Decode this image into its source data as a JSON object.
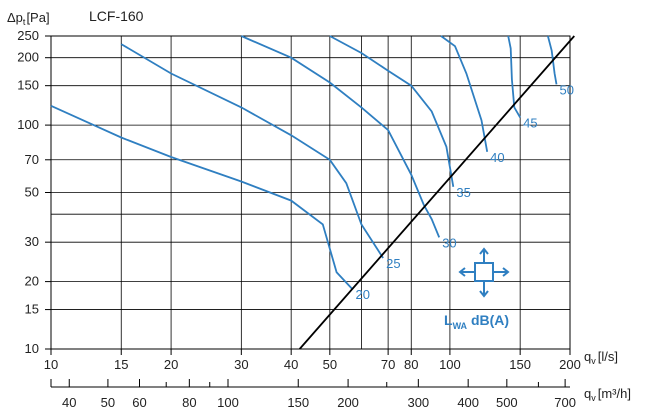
{
  "chart_data": {
    "type": "line",
    "title": "LCF-160",
    "y_axis": {
      "label_main": "Δp",
      "label_sub": "t",
      "label_unit": "[Pa]",
      "scale": "log",
      "range": [
        10,
        250
      ],
      "ticks": [
        10,
        15,
        20,
        30,
        50,
        70,
        100,
        150,
        200,
        250
      ]
    },
    "x_axis": {
      "label_main": "q",
      "label_sub": "v",
      "label_unit": "[l/s]",
      "scale": "log",
      "range": [
        10,
        200
      ],
      "ticks": [
        10,
        15,
        20,
        30,
        40,
        50,
        70,
        80,
        100,
        150,
        200
      ]
    },
    "x_axis_secondary": {
      "label_main": "q",
      "label_sub": "v",
      "label_unit": "[m³/h]",
      "scale": "log",
      "ticks": [
        40,
        50,
        60,
        80,
        100,
        150,
        200,
        300,
        400,
        500,
        700
      ]
    },
    "grid": true,
    "series": [
      {
        "name": "20",
        "points": [
          [
            10,
            122
          ],
          [
            15,
            88
          ],
          [
            20,
            72
          ],
          [
            30,
            56
          ],
          [
            40,
            46
          ],
          [
            48,
            36
          ],
          [
            52,
            22
          ],
          [
            57,
            18.5
          ]
        ]
      },
      {
        "name": "25",
        "points": [
          [
            15,
            230
          ],
          [
            20,
            170
          ],
          [
            30,
            120
          ],
          [
            40,
            90
          ],
          [
            50,
            70
          ],
          [
            55,
            55
          ],
          [
            60,
            36
          ],
          [
            68,
            25.5
          ]
        ]
      },
      {
        "name": "30",
        "points": [
          [
            30,
            250
          ],
          [
            40,
            200
          ],
          [
            50,
            155
          ],
          [
            60,
            120
          ],
          [
            70,
            95
          ],
          [
            80,
            60
          ],
          [
            86,
            44
          ],
          [
            90,
            38
          ],
          [
            94,
            31.5
          ]
        ]
      },
      {
        "name": "35",
        "points": [
          [
            50,
            250
          ],
          [
            60,
            210
          ],
          [
            70,
            175
          ],
          [
            80,
            150
          ],
          [
            90,
            115
          ],
          [
            98,
            80
          ],
          [
            102,
            53
          ]
        ]
      },
      {
        "name": "40",
        "points": [
          [
            95,
            250
          ],
          [
            103,
            225
          ],
          [
            110,
            170
          ],
          [
            120,
            105
          ],
          [
            124,
            76
          ]
        ]
      },
      {
        "name": "45",
        "points": [
          [
            140,
            250
          ],
          [
            142,
            220
          ],
          [
            143,
            160
          ],
          [
            145,
            120
          ],
          [
            150,
            108
          ]
        ]
      },
      {
        "name": "50",
        "points": [
          [
            176,
            250
          ],
          [
            180,
            215
          ],
          [
            183,
            170
          ],
          [
            185,
            152
          ]
        ]
      }
    ],
    "system_line": {
      "points": [
        [
          42,
          10
        ],
        [
          205,
          250
        ]
      ]
    },
    "colors": {
      "curves": "#2f7fc1",
      "system_line": "#000000",
      "grid": "#000000"
    },
    "annotation": {
      "main": "L",
      "sub": "WA",
      "rest": " dB(A)",
      "icon": "flow-directions-icon"
    }
  }
}
